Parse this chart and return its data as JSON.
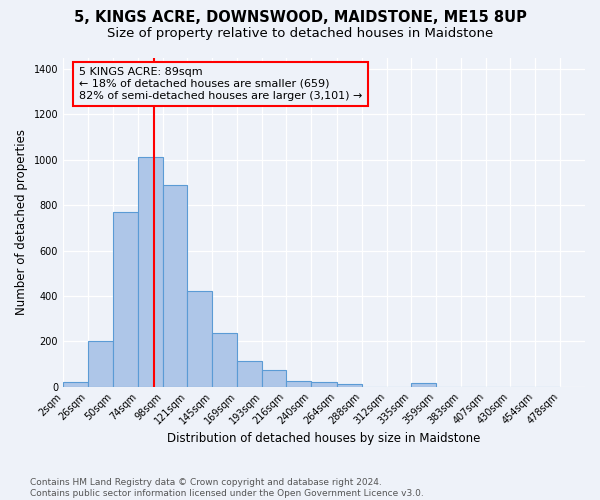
{
  "title": "5, KINGS ACRE, DOWNSWOOD, MAIDSTONE, ME15 8UP",
  "subtitle": "Size of property relative to detached houses in Maidstone",
  "xlabel": "Distribution of detached houses by size in Maidstone",
  "ylabel": "Number of detached properties",
  "footnote": "Contains HM Land Registry data © Crown copyright and database right 2024.\nContains public sector information licensed under the Open Government Licence v3.0.",
  "bin_labels": [
    "2sqm",
    "26sqm",
    "50sqm",
    "74sqm",
    "98sqm",
    "121sqm",
    "145sqm",
    "169sqm",
    "193sqm",
    "216sqm",
    "240sqm",
    "264sqm",
    "288sqm",
    "312sqm",
    "335sqm",
    "359sqm",
    "383sqm",
    "407sqm",
    "430sqm",
    "454sqm",
    "478sqm"
  ],
  "bin_edges": [
    2,
    26,
    50,
    74,
    98,
    121,
    145,
    169,
    193,
    216,
    240,
    264,
    288,
    312,
    335,
    359,
    383,
    407,
    430,
    454,
    478
  ],
  "bar_heights": [
    20,
    200,
    770,
    1010,
    890,
    420,
    235,
    115,
    75,
    25,
    20,
    10,
    0,
    0,
    15,
    0,
    0,
    0,
    0,
    0
  ],
  "bar_color": "#aec6e8",
  "bar_edgecolor": "#5b9bd5",
  "bar_linewidth": 0.8,
  "reference_line_x": 89,
  "reference_line_color": "red",
  "annotation_text": "5 KINGS ACRE: 89sqm\n← 18% of detached houses are smaller (659)\n82% of semi-detached houses are larger (3,101) →",
  "ylim": [
    0,
    1450
  ],
  "yticks": [
    0,
    200,
    400,
    600,
    800,
    1000,
    1200,
    1400
  ],
  "bg_color": "#eef2f9",
  "title_fontsize": 10.5,
  "subtitle_fontsize": 9.5,
  "axis_label_fontsize": 8.5,
  "tick_fontsize": 7,
  "footnote_fontsize": 6.5,
  "annotation_fontsize": 8
}
